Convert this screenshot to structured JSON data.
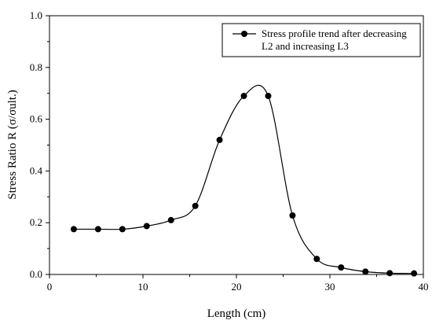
{
  "chart_data": {
    "type": "line",
    "xlabel": "Length (cm)",
    "ylabel": "Stress Ratio R (σ/σult.)",
    "xlim": [
      0,
      40
    ],
    "ylim": [
      0,
      1.0
    ],
    "x_ticks": [
      "0",
      "10",
      "20",
      "30",
      "40"
    ],
    "y_ticks": [
      "0.0",
      "0.2",
      "0.4",
      "0.6",
      "0.8",
      "1.0"
    ],
    "legend_position": "top-right",
    "grid": false,
    "colors": {
      "line": "#000000",
      "marker": "#000000"
    },
    "series": [
      {
        "name": "Stress profile trend after decreasing L2 and increasing L3",
        "legend_lines": [
          "Stress profile trend after decreasing",
          "L2 and increasing L3"
        ],
        "marker": "circle",
        "x": [
          2.6,
          5.2,
          7.8,
          10.4,
          13.0,
          15.6,
          18.2,
          20.8,
          23.4,
          26.0,
          28.6,
          31.2,
          33.8,
          36.4,
          39.0
        ],
        "y": [
          0.175,
          0.175,
          0.175,
          0.187,
          0.21,
          0.265,
          0.52,
          0.69,
          0.69,
          0.228,
          0.06,
          0.027,
          0.011,
          0.005,
          0.004
        ]
      }
    ]
  }
}
